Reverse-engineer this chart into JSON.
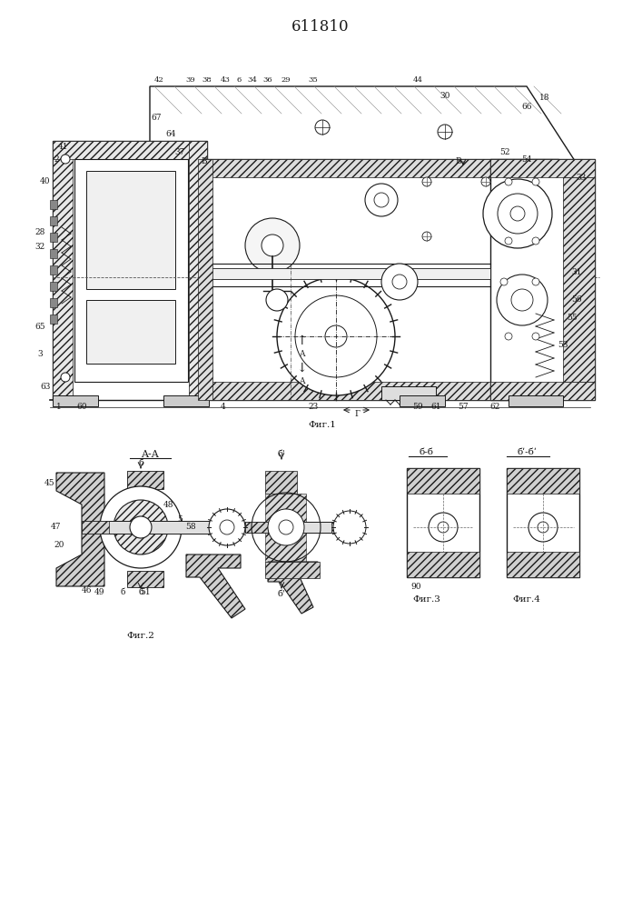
{
  "title": "611810",
  "title_fontsize": 12,
  "bg_color": "#ffffff",
  "fig_width": 7.07,
  "fig_height": 10.0,
  "dpi": 100,
  "fig1_label": "Фиг.1",
  "fig2_label": "Фиг.2",
  "fig3_label": "Фиг.3",
  "fig4_label": "Фиг.4",
  "aa_label": "A-A",
  "bb_label": "б-б",
  "bbp_label": "бʹ-бʹ",
  "line_color": "#1a1a1a",
  "lw": 0.8
}
